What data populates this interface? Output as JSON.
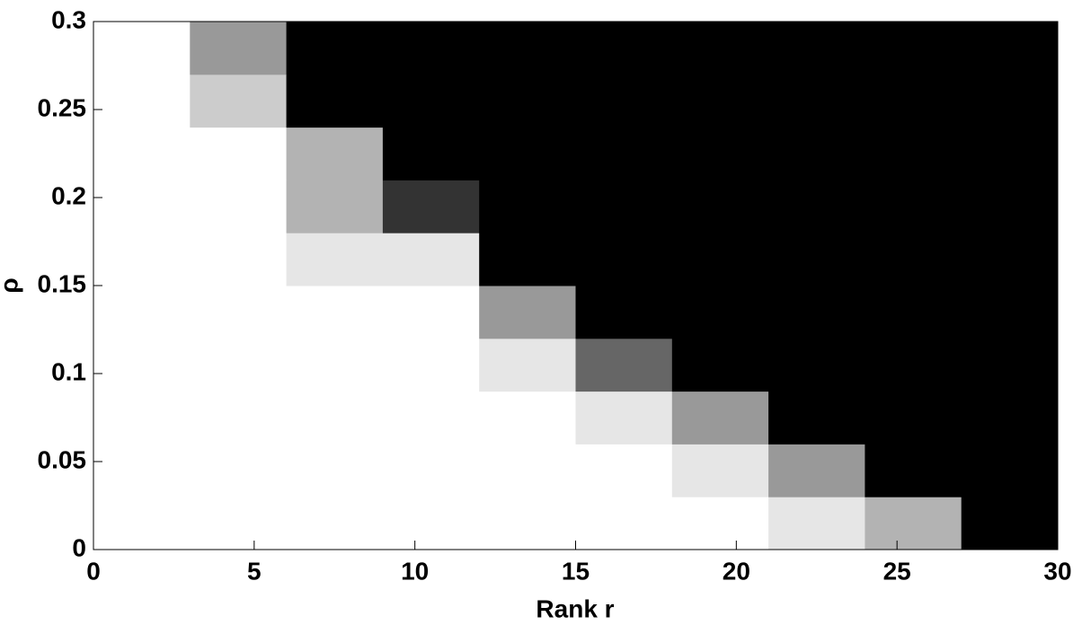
{
  "chart_data": {
    "type": "heatmap",
    "colormap": "gray",
    "xlabel": "Rank r",
    "ylabel": "ρ",
    "x_bins": [
      0,
      3,
      6,
      9,
      12,
      15,
      18,
      21,
      24,
      27,
      30
    ],
    "y_bins": [
      0,
      0.03,
      0.06,
      0.09,
      0.12,
      0.15,
      0.18,
      0.21,
      0.24,
      0.27,
      0.3
    ],
    "values": [
      [
        1,
        1,
        1,
        1,
        1,
        1,
        1,
        0.9,
        0.7,
        0
      ],
      [
        1,
        1,
        1,
        1,
        1,
        1,
        0.9,
        0.6,
        0,
        0
      ],
      [
        1,
        1,
        1,
        1,
        1,
        0.9,
        0.6,
        0,
        0,
        0
      ],
      [
        1,
        1,
        1,
        1,
        0.9,
        0.4,
        0,
        0,
        0,
        0
      ],
      [
        1,
        1,
        1,
        1,
        0.6,
        0,
        0,
        0,
        0,
        0
      ],
      [
        1,
        1,
        0.9,
        0.9,
        0,
        0,
        0,
        0,
        0,
        0
      ],
      [
        1,
        1,
        0.7,
        0.2,
        0,
        0,
        0,
        0,
        0,
        0
      ],
      [
        1,
        1,
        0.7,
        0,
        0,
        0,
        0,
        0,
        0,
        0
      ],
      [
        1,
        0.8,
        0,
        0,
        0,
        0,
        0,
        0,
        0,
        0
      ],
      [
        1,
        0.6,
        0,
        0,
        0,
        0,
        0,
        0,
        0,
        0
      ]
    ],
    "xlim": [
      0,
      30
    ],
    "xticks": [
      0,
      5,
      10,
      15,
      20,
      25,
      30
    ],
    "ylim": [
      0,
      0.3
    ],
    "yticks": [
      0,
      0.05,
      0.1,
      0.15,
      0.2,
      0.25,
      0.3
    ]
  }
}
